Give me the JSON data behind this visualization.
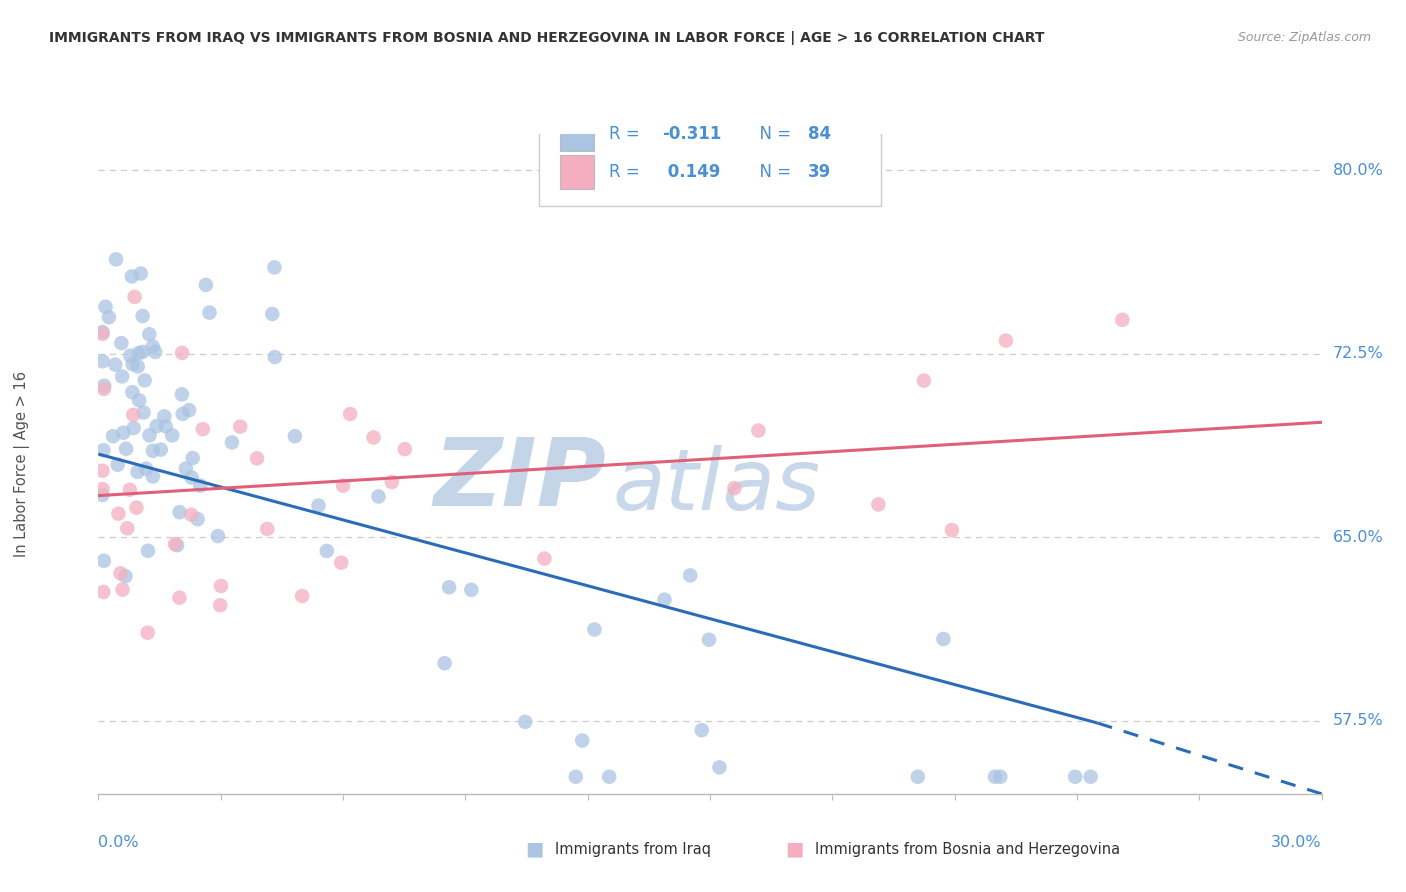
{
  "title": "IMMIGRANTS FROM IRAQ VS IMMIGRANTS FROM BOSNIA AND HERZEGOVINA IN LABOR FORCE | AGE > 16 CORRELATION CHART",
  "source": "Source: ZipAtlas.com",
  "xmin": 0.0,
  "xmax": 0.3,
  "ymin": 0.545,
  "ymax": 0.815,
  "blue_label": "Immigrants from Iraq",
  "pink_label": "Immigrants from Bosnia and Herzegovina",
  "blue_R": -0.311,
  "blue_N": 84,
  "pink_R": 0.149,
  "pink_N": 39,
  "blue_color": "#aac4e2",
  "pink_color": "#f5aec0",
  "blue_line_color": "#2b6cb8",
  "pink_line_color": "#e0607a",
  "watermark_ZIP_color": "#c5d5e8",
  "watermark_atlas_color": "#c8d8ea",
  "background_color": "#ffffff",
  "grid_color": "#cccccc",
  "tick_label_color": "#4a8fd4",
  "legend_text_color": "#4a8fd4",
  "title_color": "#333333",
  "ylabel_text": "In Labor Force | Age > 16",
  "ytick_vals": [
    0.575,
    0.65,
    0.725,
    0.8
  ],
  "ytick_labels": [
    "57.5%",
    "65.0%",
    "72.5%",
    "80.0%"
  ],
  "blue_line_start_x": 0.0,
  "blue_line_solid_end_x": 0.245,
  "blue_line_end_x": 0.3,
  "pink_line_start_x": 0.0,
  "pink_line_end_x": 0.3
}
